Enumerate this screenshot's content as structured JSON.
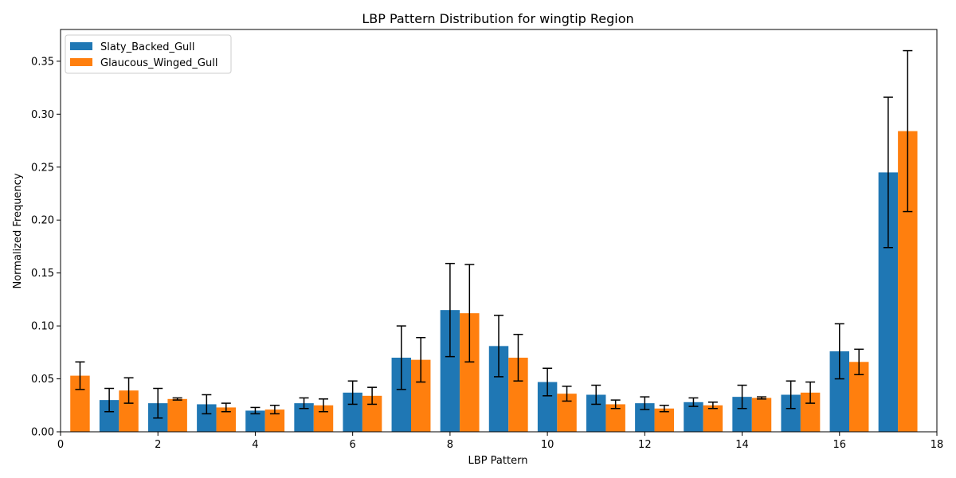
{
  "chart_data": {
    "type": "bar",
    "title": "LBP Pattern Distribution for wingtip Region",
    "xlabel": "LBP Pattern",
    "ylabel": "Normalized Frequency",
    "xlim": [
      0,
      18
    ],
    "ylim": [
      0,
      0.38
    ],
    "xticks": [
      0,
      2,
      4,
      6,
      8,
      10,
      12,
      14,
      16,
      18
    ],
    "yticks": [
      0.0,
      0.05,
      0.1,
      0.15,
      0.2,
      0.25,
      0.3,
      0.35
    ],
    "legend_position": "top-left",
    "grid": false,
    "categories": [
      0,
      1,
      2,
      3,
      4,
      5,
      6,
      7,
      8,
      9,
      10,
      11,
      12,
      13,
      14,
      15,
      16,
      17
    ],
    "series": [
      {
        "name": "Slaty_Backed_Gull",
        "color": "#1f77b4",
        "values": [
          0.0,
          0.03,
          0.027,
          0.026,
          0.02,
          0.027,
          0.037,
          0.07,
          0.115,
          0.081,
          0.047,
          0.035,
          0.027,
          0.028,
          0.033,
          0.035,
          0.076,
          0.245
        ],
        "errors": [
          0.0,
          0.011,
          0.014,
          0.009,
          0.003,
          0.005,
          0.011,
          0.03,
          0.044,
          0.029,
          0.013,
          0.009,
          0.006,
          0.004,
          0.011,
          0.013,
          0.026,
          0.071
        ]
      },
      {
        "name": "Glaucous_Winged_Gull",
        "color": "#ff7f0e",
        "values": [
          0.053,
          0.039,
          0.031,
          0.023,
          0.021,
          0.025,
          0.034,
          0.068,
          0.112,
          0.07,
          0.036,
          0.026,
          0.022,
          0.025,
          0.032,
          0.037,
          0.066,
          0.284
        ],
        "errors": [
          0.013,
          0.012,
          0.001,
          0.004,
          0.004,
          0.006,
          0.008,
          0.021,
          0.046,
          0.022,
          0.007,
          0.004,
          0.003,
          0.003,
          0.001,
          0.01,
          0.012,
          0.076
        ]
      }
    ]
  }
}
